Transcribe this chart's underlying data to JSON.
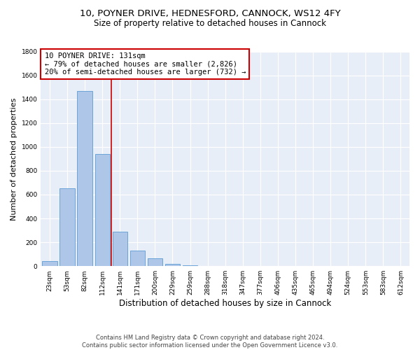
{
  "title_line1": "10, POYNER DRIVE, HEDNESFORD, CANNOCK, WS12 4FY",
  "title_line2": "Size of property relative to detached houses in Cannock",
  "xlabel": "Distribution of detached houses by size in Cannock",
  "ylabel": "Number of detached properties",
  "categories": [
    "23sqm",
    "53sqm",
    "82sqm",
    "112sqm",
    "141sqm",
    "171sqm",
    "200sqm",
    "229sqm",
    "259sqm",
    "288sqm",
    "318sqm",
    "347sqm",
    "377sqm",
    "406sqm",
    "435sqm",
    "465sqm",
    "494sqm",
    "524sqm",
    "553sqm",
    "583sqm",
    "612sqm"
  ],
  "values": [
    40,
    650,
    1470,
    940,
    290,
    130,
    65,
    20,
    10,
    0,
    0,
    0,
    0,
    0,
    0,
    0,
    0,
    0,
    0,
    0,
    0
  ],
  "bar_color": "#aec6e8",
  "bar_edge_color": "#5b9bd5",
  "bar_width": 0.85,
  "vline_x": 3.5,
  "vline_color": "#cc0000",
  "annotation_text": "10 POYNER DRIVE: 131sqm\n← 79% of detached houses are smaller (2,826)\n20% of semi-detached houses are larger (732) →",
  "annotation_box_color": "#ffffff",
  "annotation_box_edge_color": "#cc0000",
  "ylim": [
    0,
    1800
  ],
  "yticks": [
    0,
    200,
    400,
    600,
    800,
    1000,
    1200,
    1400,
    1600,
    1800
  ],
  "background_color": "#e8eef7",
  "footer_text": "Contains HM Land Registry data © Crown copyright and database right 2024.\nContains public sector information licensed under the Open Government Licence v3.0.",
  "title_fontsize": 9.5,
  "subtitle_fontsize": 8.5,
  "tick_fontsize": 6.5,
  "ylabel_fontsize": 8,
  "xlabel_fontsize": 8.5,
  "annotation_fontsize": 7.5,
  "footer_fontsize": 6.0
}
